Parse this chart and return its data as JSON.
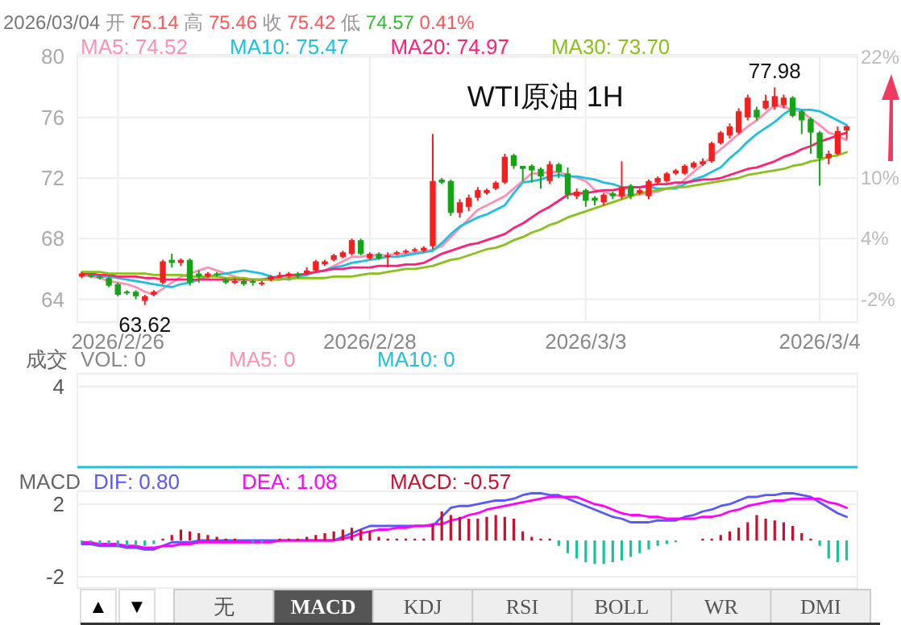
{
  "chart_data": [
    {
      "type": "candlestick",
      "title": "WTI原油 1H",
      "annotations": [
        "2026/03/04",
        "开",
        "75.14",
        "高",
        "75.46",
        "收",
        "75.42",
        "低",
        "74.57",
        "0.41%",
        {
          "text": "63.62",
          "y": 63.62
        },
        {
          "text": "77.98",
          "y": 77.98
        }
      ],
      "categories": [
        null,
        null,
        null,
        null,
        "2026/2/26",
        null,
        null,
        null,
        null,
        null,
        null,
        null,
        null,
        null,
        null,
        null,
        null,
        null,
        null,
        null,
        null,
        null,
        null,
        null,
        null,
        null,
        null,
        null,
        null,
        null,
        null,
        null,
        "2026/2/28",
        null,
        null,
        null,
        null,
        null,
        null,
        null,
        null,
        null,
        null,
        null,
        null,
        null,
        null,
        null,
        null,
        null,
        null,
        null,
        null,
        null,
        null,
        null,
        "2026/3/3",
        null,
        null,
        null,
        null,
        null,
        null,
        null,
        null,
        null,
        null,
        null,
        null,
        null,
        null,
        null,
        null,
        null,
        null,
        null,
        null,
        null,
        null,
        null,
        null,
        null,
        "2026/3/4",
        null,
        null,
        null
      ],
      "ohlc": [
        [
          65.5,
          65.8,
          65.4,
          65.7
        ],
        [
          65.6,
          65.7,
          65.4,
          65.5
        ],
        [
          65.5,
          65.6,
          65.3,
          65.4
        ],
        [
          65.4,
          65.5,
          64.8,
          64.9
        ],
        [
          65.0,
          65.1,
          64.2,
          64.3
        ],
        [
          64.5,
          64.6,
          64.3,
          64.4
        ],
        [
          64.5,
          64.6,
          64.0,
          64.2
        ],
        [
          63.9,
          64.3,
          63.62,
          64.2
        ],
        [
          64.3,
          64.6,
          64.2,
          64.5
        ],
        [
          65.1,
          66.6,
          65.0,
          66.5
        ],
        [
          66.6,
          67.0,
          66.1,
          66.4
        ],
        [
          66.4,
          66.7,
          66.2,
          66.6
        ],
        [
          66.6,
          66.7,
          64.9,
          65.1
        ],
        [
          65.7,
          65.9,
          65.1,
          65.5
        ],
        [
          65.5,
          65.8,
          65.4,
          65.7
        ],
        [
          65.7,
          65.8,
          65.5,
          65.6
        ],
        [
          65.3,
          65.4,
          65.0,
          65.1
        ],
        [
          65.1,
          65.4,
          65.0,
          65.2
        ],
        [
          65.2,
          65.3,
          64.9,
          65.0
        ],
        [
          65.2,
          65.3,
          64.9,
          65.1
        ],
        [
          65.0,
          65.2,
          64.9,
          65.1
        ],
        [
          65.3,
          65.6,
          65.2,
          65.5
        ],
        [
          65.5,
          65.8,
          65.4,
          65.6
        ],
        [
          65.5,
          65.8,
          65.4,
          65.7
        ],
        [
          65.7,
          65.8,
          65.4,
          65.6
        ],
        [
          65.7,
          66.1,
          65.6,
          65.9
        ],
        [
          65.9,
          66.6,
          65.8,
          66.5
        ],
        [
          66.3,
          66.6,
          66.2,
          66.5
        ],
        [
          66.6,
          67.0,
          66.5,
          66.9
        ],
        [
          66.8,
          67.2,
          66.7,
          67.1
        ],
        [
          67.0,
          68.0,
          66.9,
          67.9
        ],
        [
          67.9,
          68.0,
          66.9,
          67.0
        ],
        [
          66.7,
          67.1,
          66.6,
          67.0
        ],
        [
          67.0,
          67.1,
          66.6,
          66.7
        ],
        [
          66.8,
          67.1,
          66.1,
          66.9
        ],
        [
          67.0,
          67.2,
          66.9,
          67.1
        ],
        [
          67.1,
          67.3,
          67.0,
          67.2
        ],
        [
          67.2,
          67.4,
          67.1,
          67.3
        ],
        [
          67.2,
          67.5,
          67.1,
          67.4
        ],
        [
          67.5,
          74.9,
          67.3,
          71.8
        ],
        [
          71.9,
          72.0,
          71.6,
          71.7
        ],
        [
          71.8,
          71.9,
          69.5,
          69.7
        ],
        [
          69.7,
          70.6,
          69.4,
          70.4
        ],
        [
          70.1,
          70.9,
          69.8,
          70.7
        ],
        [
          70.7,
          71.4,
          70.5,
          71.2
        ],
        [
          71.0,
          71.3,
          70.9,
          71.2
        ],
        [
          71.3,
          71.8,
          71.2,
          71.7
        ],
        [
          71.7,
          73.6,
          71.6,
          73.4
        ],
        [
          73.5,
          73.6,
          72.6,
          72.8
        ],
        [
          72.8,
          72.8,
          71.8,
          72.6
        ],
        [
          72.8,
          72.9,
          71.7,
          72.5
        ],
        [
          72.6,
          72.7,
          71.3,
          72.1
        ],
        [
          71.8,
          73.1,
          71.6,
          72.9
        ],
        [
          72.9,
          73.0,
          72.0,
          72.4
        ],
        [
          72.3,
          72.7,
          70.6,
          70.9
        ],
        [
          70.8,
          71.3,
          70.6,
          71.1
        ],
        [
          71.2,
          71.3,
          70.1,
          70.5
        ],
        [
          70.7,
          70.8,
          70.2,
          70.5
        ],
        [
          70.4,
          71.0,
          70.2,
          70.9
        ],
        [
          71.0,
          71.1,
          70.6,
          70.8
        ],
        [
          70.8,
          73.1,
          70.6,
          71.4
        ],
        [
          71.5,
          71.6,
          70.6,
          70.8
        ],
        [
          71.0,
          71.3,
          70.9,
          71.2
        ],
        [
          70.8,
          71.9,
          70.6,
          71.8
        ],
        [
          71.7,
          72.1,
          71.6,
          72.0
        ],
        [
          71.8,
          72.4,
          71.7,
          72.3
        ],
        [
          72.3,
          72.6,
          72.2,
          72.5
        ],
        [
          72.3,
          72.9,
          72.2,
          72.8
        ],
        [
          72.7,
          73.1,
          72.6,
          73.0
        ],
        [
          72.9,
          73.3,
          72.8,
          73.1
        ],
        [
          73.1,
          74.4,
          73.0,
          74.3
        ],
        [
          74.3,
          75.1,
          74.2,
          75.0
        ],
        [
          74.8,
          75.6,
          74.6,
          75.4
        ],
        [
          75.0,
          76.6,
          74.9,
          76.4
        ],
        [
          76.0,
          77.5,
          75.8,
          77.3
        ],
        [
          76.5,
          76.7,
          75.8,
          76.0
        ],
        [
          76.6,
          77.5,
          76.5,
          77.1
        ],
        [
          76.7,
          77.98,
          76.5,
          77.4
        ],
        [
          76.8,
          77.5,
          76.6,
          77.3
        ],
        [
          77.3,
          77.4,
          76.0,
          76.1
        ],
        [
          76.4,
          76.5,
          74.9,
          75.8
        ],
        [
          75.9,
          76.0,
          73.6,
          75.0
        ],
        [
          75.0,
          75.1,
          71.5,
          73.3
        ],
        [
          73.3,
          73.8,
          72.9,
          73.6
        ],
        [
          73.6,
          75.4,
          73.5,
          75.1
        ],
        [
          75.14,
          75.46,
          74.57,
          75.42
        ]
      ],
      "series": [
        {
          "type": "line",
          "name": "MA5: 74.52",
          "color": "#ff8fb4",
          "values": [
            65.6,
            65.5,
            65.4,
            65.2,
            65.1,
            65.0,
            64.8,
            64.5,
            64.3,
            64.7,
            65.1,
            65.5,
            65.7,
            65.9,
            66.1,
            65.9,
            65.7,
            65.5,
            65.3,
            65.3,
            65.3,
            65.3,
            65.3,
            65.4,
            65.5,
            65.7,
            65.8,
            65.9,
            66.2,
            66.5,
            66.8,
            66.8,
            66.9,
            66.9,
            66.9,
            67.0,
            67.0,
            67.1,
            67.1,
            67.3,
            67.5,
            68.1,
            68.7,
            69.3,
            69.9,
            70.2,
            70.5,
            70.8,
            71.3,
            71.8,
            72.3,
            72.3,
            72.4,
            72.4,
            72.2,
            72.0,
            71.8,
            71.2,
            71.1,
            70.9,
            70.8,
            70.9,
            70.9,
            71.0,
            71.1,
            71.3,
            71.4,
            71.9,
            72.4,
            72.9,
            73.4,
            73.9,
            74.4,
            74.9,
            75.4,
            75.8,
            76.3,
            76.8,
            76.7,
            76.5,
            76.4,
            75.9,
            75.5,
            75.0,
            74.8,
            74.5
          ]
        },
        {
          "type": "line",
          "name": "MA10: 75.47",
          "color": "#1ec0e0",
          "values": [
            65.7,
            65.6,
            65.5,
            65.5,
            65.4,
            65.3,
            65.2,
            65.1,
            65.0,
            64.9,
            64.8,
            65.0,
            65.1,
            65.3,
            65.5,
            65.6,
            65.7,
            65.8,
            65.9,
            65.8,
            65.7,
            65.5,
            65.4,
            65.3,
            65.5,
            65.6,
            65.8,
            65.9,
            66.1,
            66.2,
            66.4,
            66.5,
            66.6,
            66.7,
            66.8,
            66.8,
            66.9,
            67.0,
            67.1,
            67.2,
            67.7,
            68.3,
            68.8,
            69.1,
            69.4,
            69.6,
            69.9,
            70.2,
            71.0,
            71.7,
            71.8,
            71.9,
            72.1,
            72.2,
            72.1,
            72.1,
            72.0,
            71.9,
            71.7,
            71.6,
            71.4,
            71.4,
            71.4,
            71.4,
            71.3,
            71.3,
            71.3,
            71.6,
            71.9,
            72.1,
            72.4,
            72.7,
            73.3,
            73.8,
            74.4,
            74.9,
            75.3,
            75.7,
            76.2,
            76.6,
            76.5,
            76.5,
            76.4,
            76.1,
            75.8,
            75.5
          ]
        },
        {
          "type": "line",
          "name": "MA20: 74.97",
          "color": "#ff1f78",
          "values": [
            65.7,
            65.7,
            65.6,
            65.6,
            65.5,
            65.5,
            65.5,
            65.4,
            65.4,
            65.3,
            65.3,
            65.3,
            65.3,
            65.3,
            65.3,
            65.3,
            65.3,
            65.3,
            65.3,
            65.3,
            65.3,
            65.4,
            65.5,
            65.6,
            65.6,
            65.7,
            65.8,
            65.9,
            66.0,
            66.0,
            66.1,
            66.1,
            66.1,
            66.2,
            66.2,
            66.2,
            66.3,
            66.3,
            66.4,
            66.7,
            67.0,
            67.2,
            67.4,
            67.6,
            67.7,
            67.9,
            68.1,
            68.3,
            68.7,
            69.0,
            69.4,
            69.8,
            70.1,
            70.5,
            70.9,
            71.0,
            71.0,
            71.1,
            71.2,
            71.2,
            71.3,
            71.4,
            71.4,
            71.5,
            71.6,
            71.6,
            71.7,
            71.7,
            71.8,
            71.9,
            71.9,
            72.0,
            72.2,
            72.4,
            72.6,
            72.7,
            72.9,
            73.1,
            73.4,
            73.6,
            73.9,
            74.1,
            74.4,
            74.6,
            74.8,
            75.0
          ]
        },
        {
          "type": "line",
          "name": "MA30: 73.70",
          "color": "#88c218",
          "values": [
            65.8,
            65.8,
            65.8,
            65.7,
            65.7,
            65.7,
            65.7,
            65.7,
            65.6,
            65.6,
            65.6,
            65.6,
            65.5,
            65.5,
            65.5,
            65.5,
            65.4,
            65.4,
            65.4,
            65.3,
            65.3,
            65.3,
            65.3,
            65.4,
            65.4,
            65.4,
            65.4,
            65.4,
            65.5,
            65.5,
            65.5,
            65.6,
            65.7,
            65.7,
            65.8,
            65.9,
            66.0,
            66.0,
            66.1,
            66.2,
            66.4,
            66.6,
            66.7,
            66.9,
            67.1,
            67.3,
            67.4,
            67.6,
            67.9,
            68.1,
            68.4,
            68.6,
            68.9,
            69.1,
            69.4,
            69.6,
            69.8,
            70.0,
            70.2,
            70.4,
            70.6,
            70.8,
            71.0,
            71.1,
            71.2,
            71.3,
            71.4,
            71.4,
            71.5,
            71.6,
            71.7,
            71.8,
            71.9,
            72.0,
            72.2,
            72.3,
            72.4,
            72.5,
            72.6,
            72.8,
            72.9,
            73.1,
            73.2,
            73.4,
            73.5,
            73.7
          ]
        }
      ],
      "ylim": [
        62.49,
        80.13
      ],
      "yticks": [
        64,
        68,
        72,
        76,
        80
      ],
      "y2lim": [
        -4.27,
        22.2
      ],
      "y2ticks": [
        {
          "value": 22,
          "label": "22%"
        },
        {
          "value": 10,
          "label": "10%"
        },
        {
          "value": 4,
          "label": "4%"
        },
        {
          "value": -2,
          "label": "-2%"
        }
      ],
      "grid": true,
      "legend": "top left"
    },
    {
      "type": "other",
      "ylabel": "成交",
      "annotations": [
        "VOL: 0",
        "MA5: 0",
        "MA10: 0",
        "4"
      ]
    },
    {
      "type": "bar",
      "ylabel": "MACD",
      "categories": [
        null,
        null,
        null,
        null,
        null,
        null,
        null,
        null,
        null,
        null,
        null,
        null,
        null,
        null,
        null,
        null,
        null,
        null,
        null,
        null,
        null,
        null,
        null,
        null,
        null,
        null,
        null,
        null,
        null,
        null,
        null,
        null,
        null,
        null,
        null,
        null,
        null,
        null,
        null,
        null,
        null,
        null,
        null,
        null,
        null,
        null,
        null,
        null,
        null,
        null,
        null,
        null,
        null,
        null,
        null,
        null,
        null,
        null,
        null,
        null,
        null,
        null,
        null,
        null,
        null,
        null,
        null,
        null,
        null,
        null,
        null,
        null,
        null,
        null,
        null,
        null,
        null,
        null,
        null,
        null,
        null,
        null,
        null,
        null,
        null,
        null
      ],
      "series": [
        {
          "type": "line",
          "name": "DIF: 0.80",
          "color": "#5858ff",
          "values": [
            -0.2,
            -0.2,
            -0.3,
            -0.3,
            -0.3,
            -0.4,
            -0.4,
            -0.5,
            -0.5,
            -0.3,
            -0.1,
            -0.1,
            -0.1,
            0.0,
            0.0,
            0.0,
            0.0,
            0.0,
            0.0,
            0.0,
            0.0,
            0.0,
            0.0,
            0.0,
            0.0,
            0.0,
            0.0,
            0.0,
            0.0,
            0.2,
            0.4,
            0.6,
            0.8,
            0.8,
            0.8,
            0.8,
            0.8,
            0.8,
            0.8,
            0.8,
            1.3,
            1.8,
            1.9,
            1.9,
            2.0,
            2.1,
            2.2,
            2.2,
            2.3,
            2.5,
            2.6,
            2.6,
            2.5,
            2.5,
            2.3,
            2.1,
            1.9,
            1.7,
            1.5,
            1.3,
            1.2,
            1.0,
            1.0,
            1.0,
            1.1,
            1.1,
            1.1,
            1.3,
            1.4,
            1.6,
            1.7,
            1.9,
            2.0,
            2.2,
            2.4,
            2.4,
            2.5,
            2.5,
            2.6,
            2.6,
            2.5,
            2.4,
            2.1,
            1.8,
            1.5,
            1.3
          ]
        },
        {
          "type": "line",
          "name": "DEA: 1.08",
          "color": "#ff00ff",
          "values": [
            -0.1,
            -0.1,
            -0.2,
            -0.2,
            -0.2,
            -0.3,
            -0.3,
            -0.4,
            -0.4,
            -0.3,
            -0.3,
            -0.2,
            -0.2,
            -0.1,
            -0.1,
            -0.1,
            -0.1,
            -0.1,
            -0.1,
            -0.1,
            -0.1,
            -0.1,
            0.0,
            0.0,
            0.0,
            0.0,
            0.0,
            0.0,
            0.0,
            0.1,
            0.2,
            0.4,
            0.5,
            0.6,
            0.6,
            0.7,
            0.7,
            0.8,
            0.8,
            0.9,
            0.9,
            1.1,
            1.2,
            1.4,
            1.5,
            1.7,
            1.8,
            1.9,
            2.0,
            2.1,
            2.2,
            2.3,
            2.4,
            2.4,
            2.4,
            2.4,
            2.2,
            2.0,
            1.9,
            1.7,
            1.5,
            1.4,
            1.4,
            1.3,
            1.3,
            1.2,
            1.2,
            1.2,
            1.2,
            1.3,
            1.3,
            1.4,
            1.6,
            1.7,
            1.9,
            2.0,
            2.1,
            2.2,
            2.2,
            2.3,
            2.3,
            2.3,
            2.3,
            2.1,
            2.0,
            1.8
          ]
        },
        {
          "type": "bar",
          "name": "MACD: -0.57",
          "color": "#c8102e",
          "values": [
            -0.1,
            -0.1,
            -0.2,
            -0.2,
            -0.3,
            -0.3,
            -0.3,
            -0.3,
            -0.2,
            0.1,
            0.3,
            0.6,
            0.5,
            0.4,
            0.3,
            0.2,
            0.1,
            0.1,
            0,
            -0.1,
            -0.1,
            0,
            0.1,
            0.1,
            0.1,
            0.2,
            0.3,
            0.4,
            0.5,
            0.6,
            0.7,
            0.6,
            0.5,
            0.2,
            0.1,
            0.1,
            0.1,
            0.1,
            0.1,
            0.9,
            1.6,
            1.4,
            1.3,
            1.2,
            1.2,
            1.3,
            1.4,
            1.3,
            1.2,
            0.5,
            0.2,
            0.1,
            0.1,
            -0.3,
            -0.7,
            -1.0,
            -1.2,
            -1.3,
            -1.3,
            -1.2,
            -1.1,
            -0.9,
            -0.7,
            -0.5,
            -0.3,
            -0.2,
            -0.1,
            0,
            0,
            0.1,
            0.1,
            0.3,
            0.5,
            0.7,
            1.0,
            1.4,
            1.2,
            1.1,
            1.0,
            0.8,
            0.4,
            0.1,
            -0.3,
            -1.0,
            -1.2,
            -1.1
          ],
          "colors": [
            "#19c39a",
            "#19c39a",
            "#19c39a",
            "#19c39a",
            "#19c39a",
            "#19c39a",
            "#19c39a",
            "#19c39a",
            "#19c39a",
            "#c8102e",
            "#c8102e",
            "#c8102e",
            "#c8102e",
            "#c8102e",
            "#c8102e",
            "#c8102e",
            "#c8102e",
            "#c8102e",
            "#c8102e",
            "#19c39a",
            "#19c39a",
            "#c8102e",
            "#c8102e",
            "#c8102e",
            "#c8102e",
            "#c8102e",
            "#c8102e",
            "#c8102e",
            "#c8102e",
            "#c8102e",
            "#c8102e",
            "#c8102e",
            "#c8102e",
            "#c8102e",
            "#c8102e",
            "#c8102e",
            "#c8102e",
            "#c8102e",
            "#c8102e",
            "#c8102e",
            "#c8102e",
            "#c8102e",
            "#c8102e",
            "#c8102e",
            "#c8102e",
            "#c8102e",
            "#c8102e",
            "#c8102e",
            "#c8102e",
            "#c8102e",
            "#c8102e",
            "#c8102e",
            "#c8102e",
            "#19c39a",
            "#19c39a",
            "#19c39a",
            "#19c39a",
            "#19c39a",
            "#19c39a",
            "#19c39a",
            "#19c39a",
            "#19c39a",
            "#19c39a",
            "#19c39a",
            "#19c39a",
            "#19c39a",
            "#19c39a",
            "#c8102e",
            "#c8102e",
            "#c8102e",
            "#c8102e",
            "#c8102e",
            "#c8102e",
            "#c8102e",
            "#c8102e",
            "#c8102e",
            "#c8102e",
            "#c8102e",
            "#c8102e",
            "#c8102e",
            "#c8102e",
            "#c8102e",
            "#19c39a",
            "#19c39a",
            "#19c39a",
            "#19c39a"
          ]
        }
      ],
      "ylim": [
        -2.62,
        2.71
      ],
      "yticks": [
        -2,
        2
      ],
      "tick_labels": "y",
      "grid": "y",
      "legend": "top left"
    },
    {
      "type": "other",
      "annotations": [
        "▲",
        "▼"
      ],
      "categories": [
        "无",
        "MACD",
        "KDJ",
        "RSI",
        "BOLL",
        "WR",
        "DMI"
      ]
    }
  ]
}
